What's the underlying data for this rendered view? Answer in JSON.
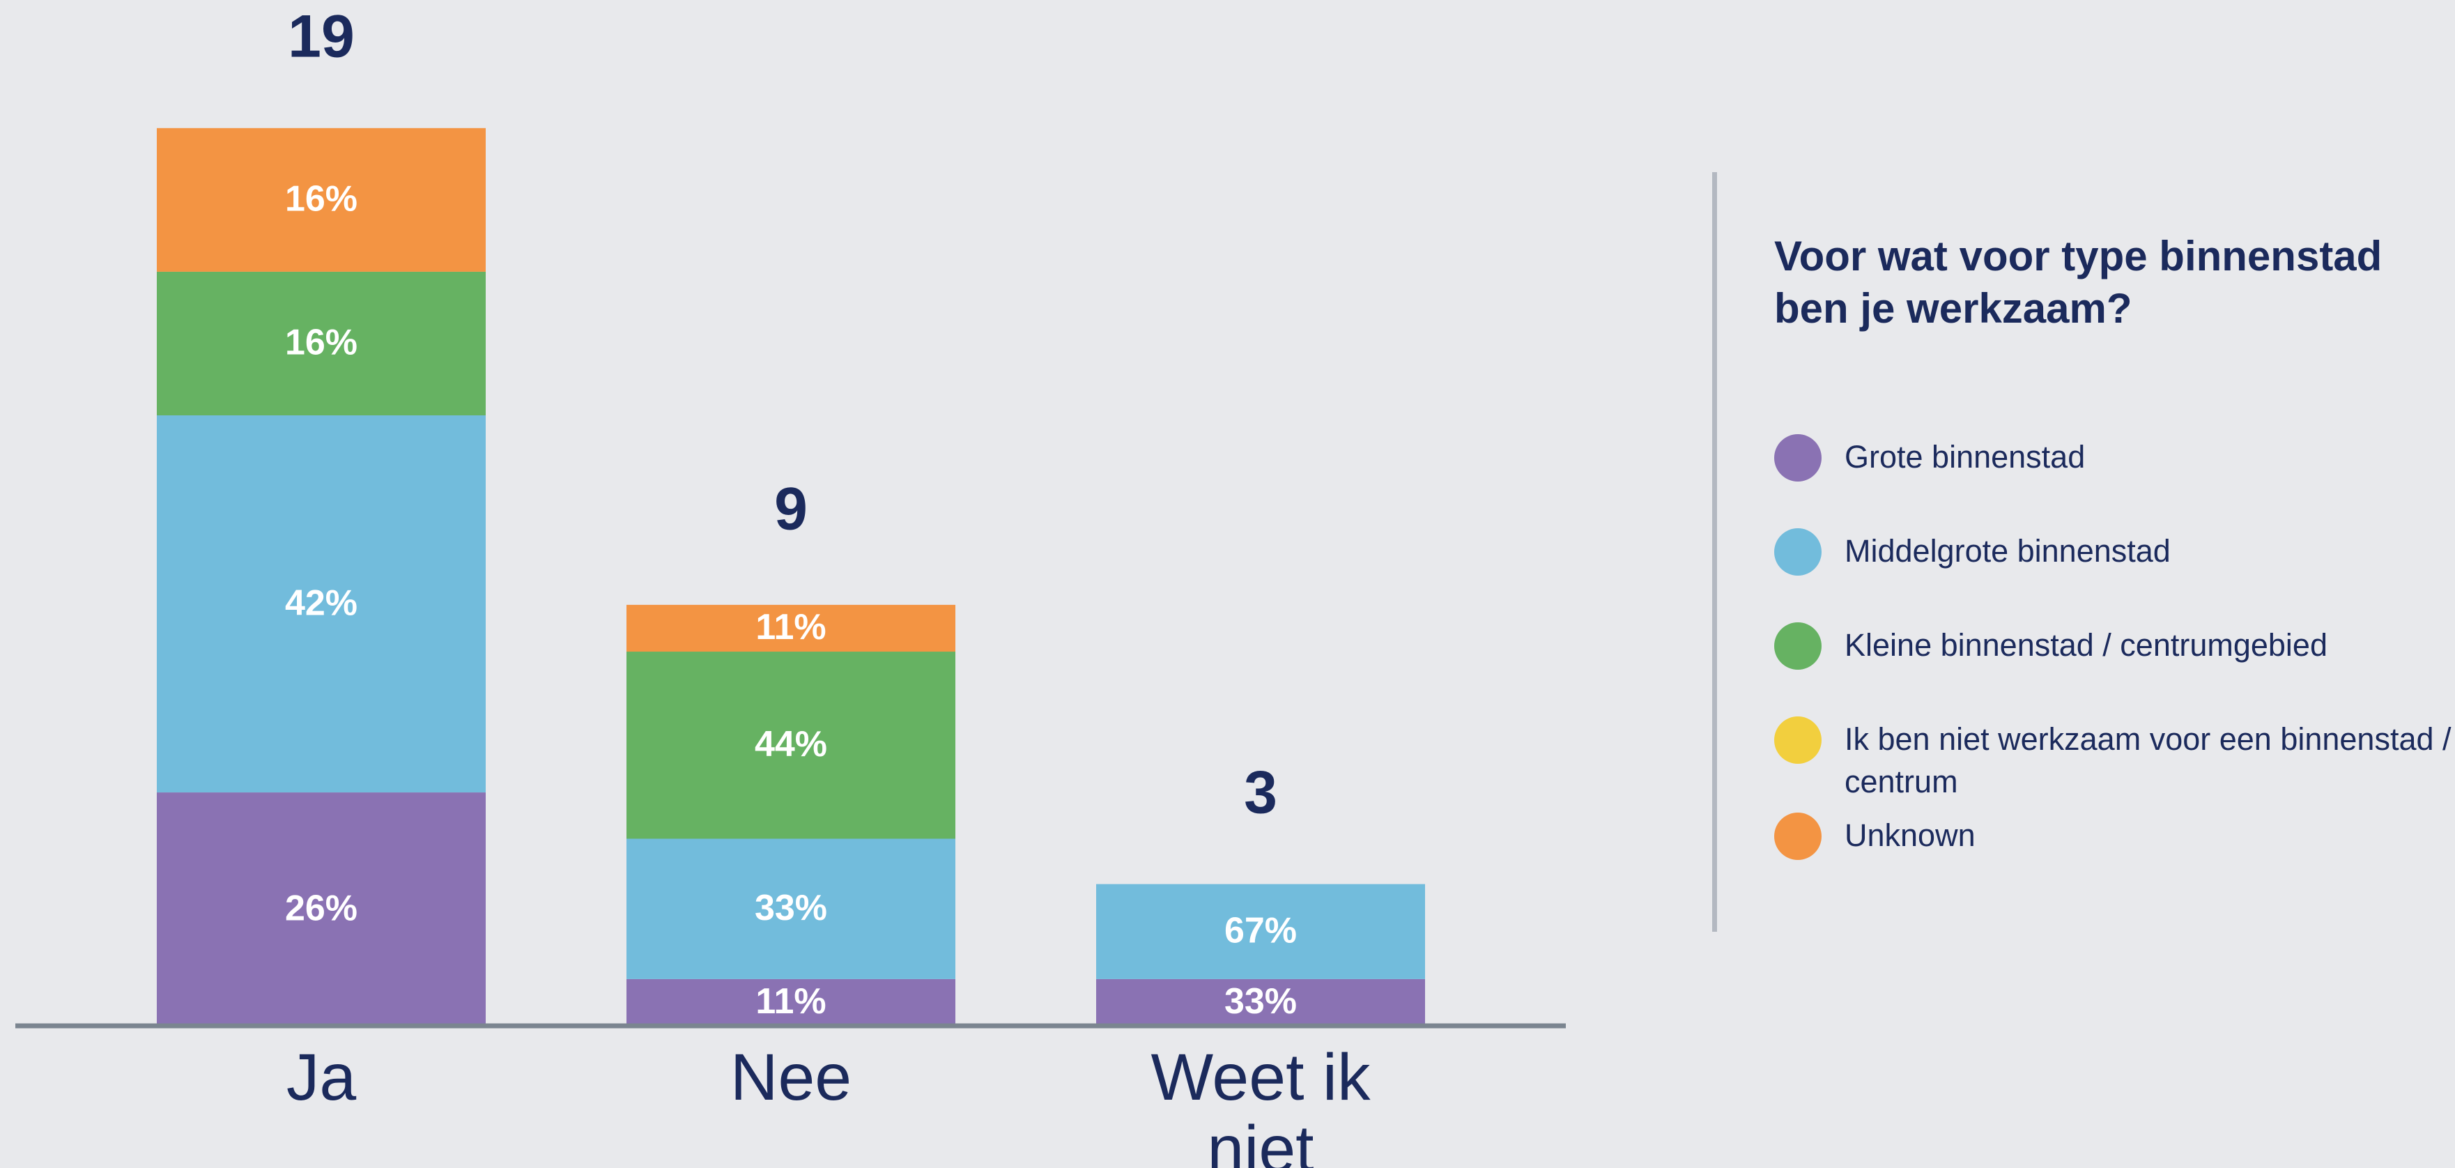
{
  "chart_data": {
    "type": "stacked-bar",
    "legend_title": "Voor wat voor type binnenstad ben je werkzaam?",
    "categories": [
      "Ja",
      "Nee",
      "Weet ik niet"
    ],
    "totals": [
      19,
      9,
      3
    ],
    "series": [
      {
        "name": "Grote binnenstad",
        "color": "#8a72b3",
        "values": [
          26,
          11,
          33
        ],
        "value_labels": [
          "26%",
          "11%",
          "33%"
        ]
      },
      {
        "name": "Middelgrote binnenstad",
        "color": "#72bcdc",
        "values": [
          42,
          33,
          67
        ],
        "value_labels": [
          "42%",
          "33%",
          "67%"
        ]
      },
      {
        "name": "Kleine binnenstad / centrumgebied",
        "color": "#66b262",
        "values": [
          16,
          44,
          null
        ],
        "value_labels": [
          "16%",
          "44%",
          null
        ]
      },
      {
        "name": "Ik ben niet werkzaam voor een binnenstad / centrum",
        "color": "#f2cf3e",
        "values": [
          null,
          null,
          null
        ]
      },
      {
        "name": "Unknown",
        "color": "#f39443",
        "values": [
          16,
          11,
          null
        ],
        "value_labels": [
          "16%",
          "11%",
          null
        ]
      }
    ]
  }
}
